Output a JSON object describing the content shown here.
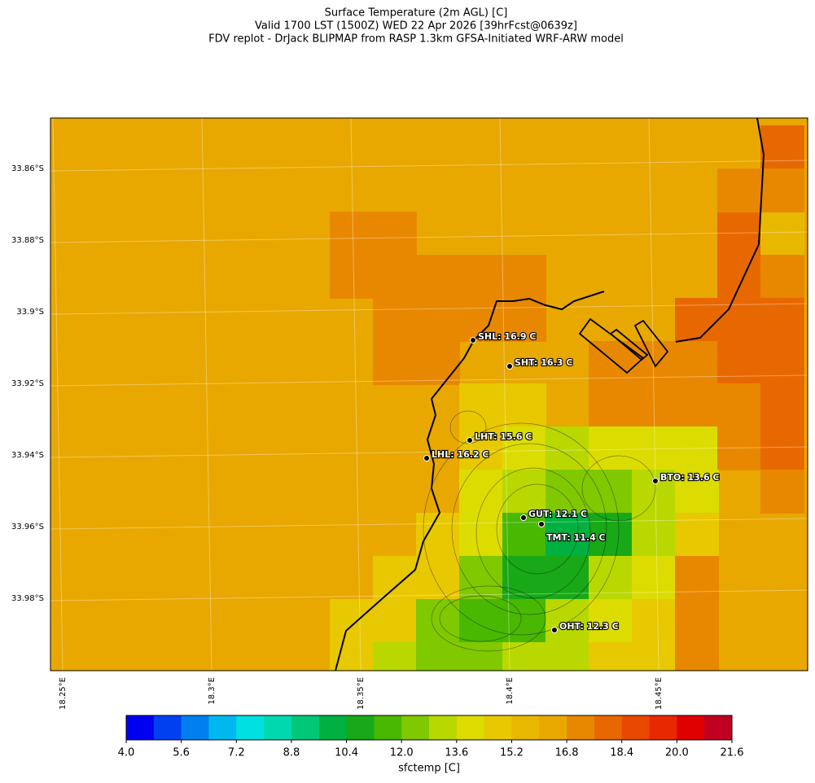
{
  "title": [
    "Surface Temperature (2m AGL) [C]",
    "Valid 1700 LST (1500Z) WED 22 Apr 2026 [39hrFcst@0639z]",
    "FDV replot - DrJack BLIPMAP from RASP 1.3km GFSA-Initiated WRF-ARW model"
  ],
  "lat_labels": [
    "33.86°S",
    "33.88°S",
    "33.9°S",
    "33.92°S",
    "33.94°S",
    "33.96°S",
    "33.98°S"
  ],
  "lon_labels": [
    "18.25°E",
    "18.3°E",
    "18.35°E",
    "18.4°E",
    "18.45°E"
  ],
  "stations": [
    {
      "label": "SHL: 16.9 C"
    },
    {
      "label": "SHT: 16.3 C"
    },
    {
      "label": "LHT: 15.6 C"
    },
    {
      "label": "LHL: 16.2 C"
    },
    {
      "label": "BTO: 13.6 C"
    },
    {
      "label": "GUT: 12.1 C"
    },
    {
      "label": "TMT: 11.4 C"
    },
    {
      "label": "OHT: 12.3 C"
    }
  ],
  "colorbar": {
    "label": "sfctemp [C]",
    "lim": [
      4.0,
      21.6
    ],
    "colors": [
      "#0000f0",
      "#0040f0",
      "#0080f0",
      "#00b8f0",
      "#00e0e0",
      "#00d8b0",
      "#00c878",
      "#00b040",
      "#18a818",
      "#48b800",
      "#80c800",
      "#b8d800",
      "#dcdc00",
      "#e8c800",
      "#e8b800",
      "#e8a800",
      "#e88800",
      "#e86800",
      "#e84800",
      "#e82800",
      "#e00000",
      "#c00020"
    ],
    "ticks": [
      {
        "value": 4.0,
        "label": "4.0"
      },
      {
        "value": 5.6,
        "label": "5.6"
      },
      {
        "value": 7.2,
        "label": "7.2"
      },
      {
        "value": 8.8,
        "label": "8.8"
      },
      {
        "value": 10.4,
        "label": "10.4"
      },
      {
        "value": 12.0,
        "label": "12.0"
      },
      {
        "value": 13.6,
        "label": "13.6"
      },
      {
        "value": 15.2,
        "label": "15.2"
      },
      {
        "value": 16.8,
        "label": "16.8"
      },
      {
        "value": 18.4,
        "label": "18.4"
      },
      {
        "value": 20.0,
        "label": "20.0"
      },
      {
        "value": 21.6,
        "label": "21.6"
      }
    ]
  }
}
